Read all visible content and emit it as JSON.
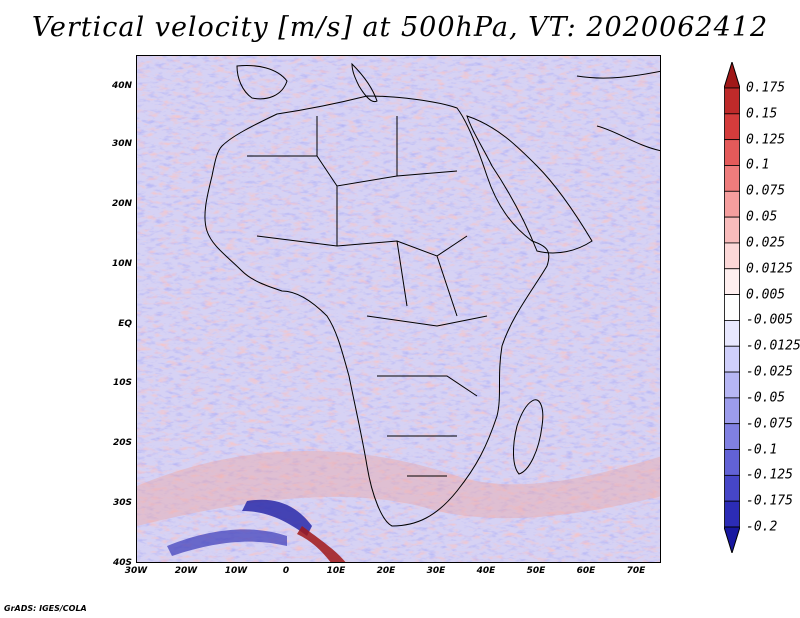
{
  "title": "Vertical velocity [m/s] at 500hPa, VT: 2020062412",
  "footer": "GrADS: IGES/COLA",
  "map": {
    "lat_labels": [
      "40N",
      "30N",
      "20N",
      "10N",
      "EQ",
      "10S",
      "20S",
      "30S",
      "40S"
    ],
    "lon_labels": [
      "30W",
      "20W",
      "10W",
      "0",
      "10E",
      "20E",
      "30E",
      "40E",
      "50E",
      "60E",
      "70E"
    ],
    "lon_range": [
      -30,
      75
    ],
    "lat_range": [
      -40,
      45
    ]
  },
  "colorbar": {
    "labels": [
      "0.175",
      "0.15",
      "0.125",
      "0.1",
      "0.075",
      "0.05",
      "0.025",
      "0.0125",
      "0.005",
      "-0.005",
      "-0.0125",
      "-0.025",
      "-0.05",
      "-0.075",
      "-0.1",
      "-0.125",
      "-0.175",
      "-0.2"
    ],
    "colors": [
      "#a01818",
      "#be2a2a",
      "#d43c3c",
      "#e45a5a",
      "#ee7c7c",
      "#f59e9e",
      "#f9bcbc",
      "#fcd8d8",
      "#ffefef",
      "#ffffff",
      "#e8e8ff",
      "#cfcffb",
      "#b6b6f4",
      "#9c9cec",
      "#8080e2",
      "#6262d6",
      "#4646c8",
      "#2c2cb6",
      "#1818a0"
    ]
  }
}
